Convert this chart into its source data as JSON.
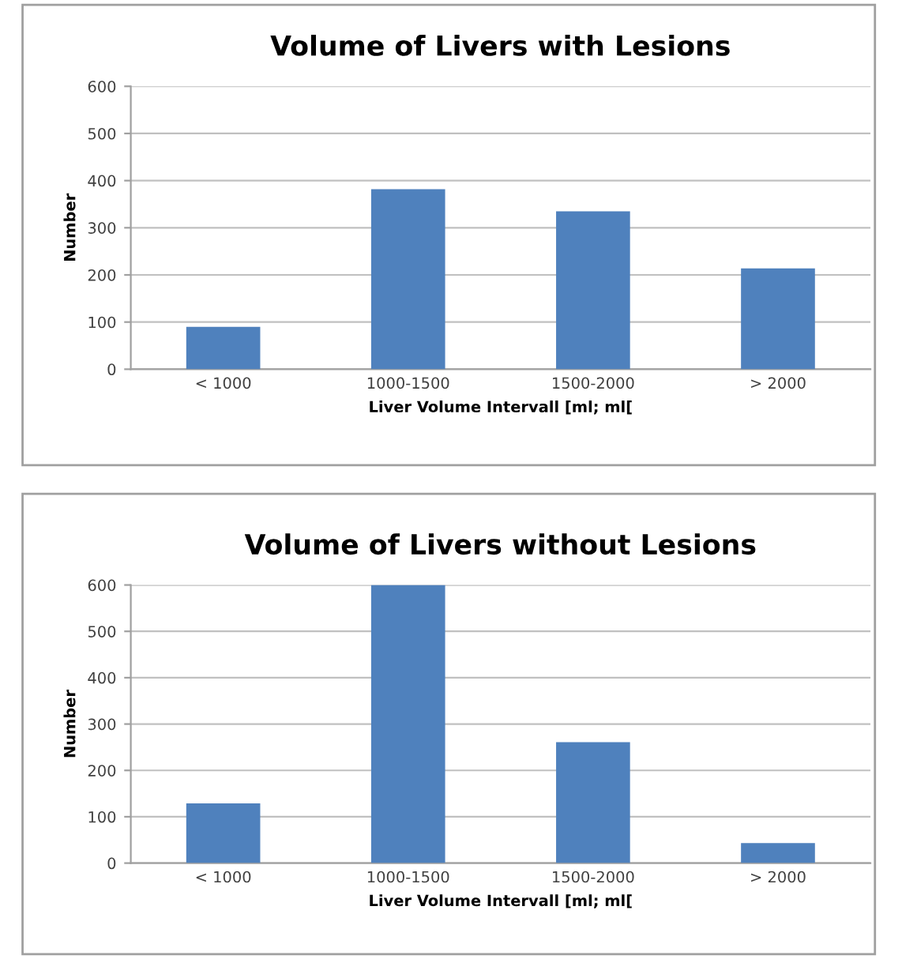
{
  "chart_data": [
    {
      "type": "bar",
      "title": "Volume of Livers with Lesions",
      "xlabel": "Liver Volume Intervall [ml; ml[",
      "ylabel": "Number",
      "categories": [
        "< 1000",
        "1000-1500",
        "1500-2000",
        "> 2000"
      ],
      "values": [
        90,
        382,
        335,
        214
      ],
      "color": "#4f81bd",
      "ylim": [
        0,
        600
      ],
      "yticks": [
        0,
        100,
        200,
        300,
        400,
        500,
        600
      ],
      "grid": "y"
    },
    {
      "type": "bar",
      "title": "Volume of Livers without Lesions",
      "xlabel": "Liver Volume Intervall [ml; ml[",
      "ylabel": "Number",
      "categories": [
        "< 1000",
        "1000-1500",
        "1500-2000",
        "> 2000"
      ],
      "values": [
        129,
        600,
        261,
        43
      ],
      "color": "#4f81bd",
      "ylim": [
        0,
        600
      ],
      "yticks": [
        0,
        100,
        200,
        300,
        400,
        500,
        600
      ],
      "grid": "y"
    }
  ]
}
